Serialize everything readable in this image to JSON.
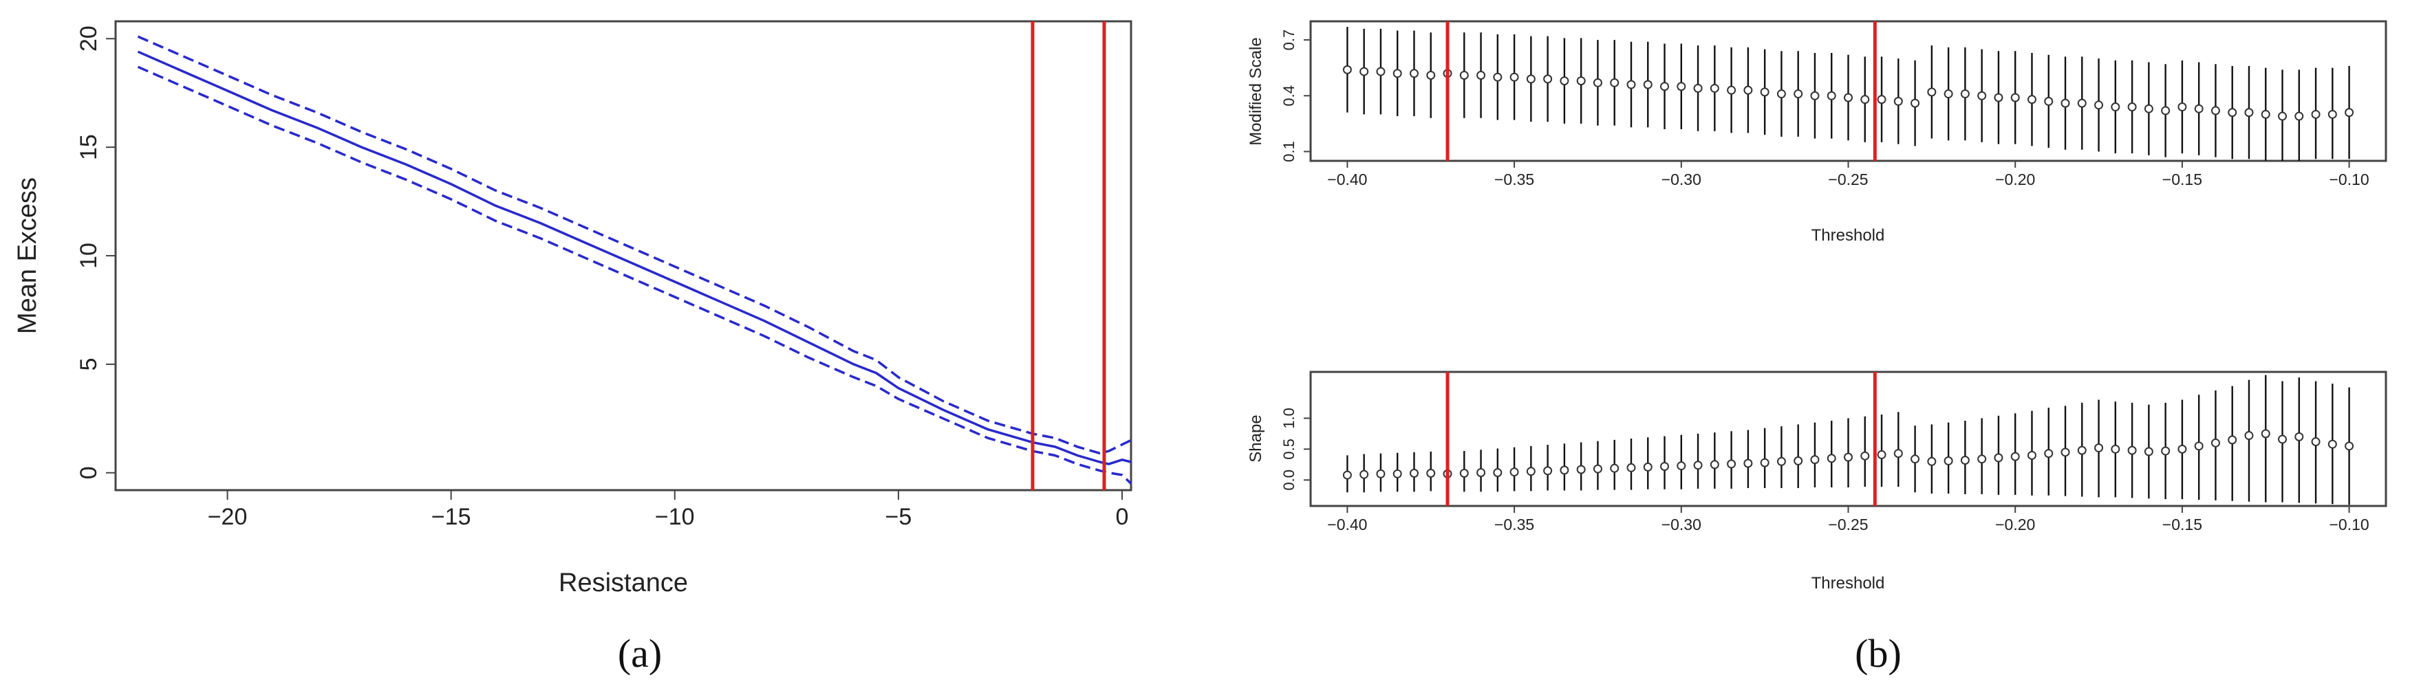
{
  "chart_data": [
    {
      "id": "a",
      "type": "line",
      "caption": "(a)",
      "xlabel": "Resistance",
      "ylabel": "Mean Excess",
      "xlim": [
        -22.5,
        0.2
      ],
      "ylim": [
        -0.8,
        20.8
      ],
      "xticks": [
        -20,
        -15,
        -10,
        -5,
        0
      ],
      "xtick_labels": [
        "−20",
        "−15",
        "−10",
        "−5",
        "0"
      ],
      "yticks": [
        0,
        5,
        10,
        15,
        20
      ],
      "ytick_labels": [
        "0",
        "5",
        "10",
        "15",
        "20"
      ],
      "x": [
        -22,
        -21,
        -20,
        -19,
        -18,
        -17,
        -16,
        -15,
        -14,
        -13,
        -12,
        -11,
        -10,
        -9,
        -8,
        -7,
        -6,
        -5.5,
        -5,
        -4,
        -3,
        -2,
        -1.5,
        -1,
        -0.5,
        -0.3,
        0,
        0.2
      ],
      "series": [
        {
          "role": "estimate",
          "style": "solid",
          "values": [
            19.4,
            18.5,
            17.6,
            16.7,
            15.9,
            15.0,
            14.2,
            13.3,
            12.3,
            11.5,
            10.6,
            9.7,
            8.8,
            7.9,
            7.0,
            6.0,
            5.0,
            4.6,
            3.9,
            2.9,
            2.0,
            1.4,
            1.2,
            0.8,
            0.5,
            0.4,
            0.6,
            0.5
          ]
        },
        {
          "role": "upper",
          "style": "dashed",
          "values": [
            20.1,
            19.2,
            18.3,
            17.4,
            16.6,
            15.7,
            14.9,
            14.0,
            13.0,
            12.2,
            11.3,
            10.4,
            9.5,
            8.6,
            7.7,
            6.7,
            5.6,
            5.2,
            4.4,
            3.3,
            2.4,
            1.8,
            1.6,
            1.2,
            0.9,
            1.0,
            1.3,
            1.5
          ]
        },
        {
          "role": "lower",
          "style": "dashed",
          "values": [
            18.7,
            17.8,
            16.9,
            16.0,
            15.2,
            14.3,
            13.5,
            12.6,
            11.6,
            10.8,
            9.9,
            9.0,
            8.1,
            7.2,
            6.3,
            5.3,
            4.4,
            4.0,
            3.4,
            2.5,
            1.6,
            1.0,
            0.8,
            0.4,
            0.1,
            0.0,
            -0.1,
            -0.5
          ]
        }
      ],
      "vlines": [
        -2.0,
        -0.4
      ],
      "colors": {
        "line": "#2929cc",
        "vline": "#e02020",
        "axis": "#444444"
      }
    },
    {
      "id": "b-top",
      "type": "scatter",
      "xlabel": "Threshold",
      "ylabel": "Modified Scale",
      "xlim": [
        -0.411,
        -0.089
      ],
      "ylim": [
        0.05,
        0.8
      ],
      "xticks": [
        -0.4,
        -0.35,
        -0.3,
        -0.25,
        -0.2,
        -0.15,
        -0.1
      ],
      "xtick_labels": [
        "−0.40",
        "−0.35",
        "−0.30",
        "−0.25",
        "−0.20",
        "−0.15",
        "−0.10"
      ],
      "yticks": [
        0.1,
        0.4,
        0.7
      ],
      "ytick_labels": [
        "0.1",
        "0.4",
        "0.7"
      ],
      "x": [
        -0.4,
        -0.395,
        -0.39,
        -0.385,
        -0.38,
        -0.375,
        -0.37,
        -0.365,
        -0.36,
        -0.355,
        -0.35,
        -0.345,
        -0.34,
        -0.335,
        -0.33,
        -0.325,
        -0.32,
        -0.315,
        -0.31,
        -0.305,
        -0.3,
        -0.295,
        -0.29,
        -0.285,
        -0.28,
        -0.275,
        -0.27,
        -0.265,
        -0.26,
        -0.255,
        -0.25,
        -0.245,
        -0.24,
        -0.235,
        -0.23,
        -0.225,
        -0.22,
        -0.215,
        -0.21,
        -0.205,
        -0.2,
        -0.195,
        -0.19,
        -0.185,
        -0.18,
        -0.175,
        -0.17,
        -0.165,
        -0.16,
        -0.155,
        -0.15,
        -0.145,
        -0.14,
        -0.135,
        -0.13,
        -0.125,
        -0.12,
        -0.115,
        -0.11,
        -0.105,
        -0.1
      ],
      "values": [
        0.54,
        0.53,
        0.53,
        0.52,
        0.52,
        0.51,
        0.52,
        0.51,
        0.51,
        0.5,
        0.5,
        0.49,
        0.49,
        0.48,
        0.48,
        0.47,
        0.47,
        0.46,
        0.46,
        0.45,
        0.45,
        0.44,
        0.44,
        0.43,
        0.43,
        0.42,
        0.41,
        0.41,
        0.4,
        0.4,
        0.39,
        0.38,
        0.38,
        0.37,
        0.36,
        0.42,
        0.41,
        0.41,
        0.4,
        0.39,
        0.39,
        0.38,
        0.37,
        0.36,
        0.36,
        0.35,
        0.34,
        0.34,
        0.33,
        0.32,
        0.34,
        0.33,
        0.32,
        0.31,
        0.31,
        0.3,
        0.29,
        0.29,
        0.3,
        0.3,
        0.31
      ],
      "lower": [
        0.31,
        0.3,
        0.3,
        0.29,
        0.29,
        0.28,
        0.29,
        0.28,
        0.28,
        0.27,
        0.27,
        0.26,
        0.26,
        0.25,
        0.25,
        0.24,
        0.24,
        0.23,
        0.23,
        0.22,
        0.22,
        0.21,
        0.21,
        0.2,
        0.2,
        0.19,
        0.18,
        0.18,
        0.17,
        0.17,
        0.16,
        0.15,
        0.15,
        0.14,
        0.13,
        0.17,
        0.16,
        0.16,
        0.15,
        0.14,
        0.14,
        0.13,
        0.12,
        0.11,
        0.11,
        0.1,
        0.09,
        0.09,
        0.08,
        0.07,
        0.09,
        0.08,
        0.07,
        0.06,
        0.06,
        0.05,
        0.05,
        0.05,
        0.06,
        0.06,
        0.06
      ],
      "upper": [
        0.77,
        0.76,
        0.76,
        0.75,
        0.75,
        0.74,
        0.75,
        0.74,
        0.74,
        0.73,
        0.73,
        0.72,
        0.72,
        0.71,
        0.71,
        0.7,
        0.7,
        0.69,
        0.69,
        0.68,
        0.68,
        0.67,
        0.67,
        0.66,
        0.66,
        0.65,
        0.64,
        0.64,
        0.63,
        0.63,
        0.62,
        0.61,
        0.61,
        0.6,
        0.59,
        0.67,
        0.66,
        0.66,
        0.65,
        0.64,
        0.64,
        0.63,
        0.62,
        0.61,
        0.61,
        0.6,
        0.59,
        0.59,
        0.58,
        0.57,
        0.59,
        0.58,
        0.57,
        0.56,
        0.56,
        0.55,
        0.54,
        0.54,
        0.55,
        0.55,
        0.56
      ],
      "vlines": [
        -0.37,
        -0.242
      ],
      "colors": {
        "point": "#333333",
        "bar": "#111111",
        "vline": "#e02020",
        "axis": "#444444"
      }
    },
    {
      "id": "b-bottom",
      "type": "scatter",
      "caption": "(b)",
      "xlabel": "Threshold",
      "ylabel": "Shape",
      "xlim": [
        -0.411,
        -0.089
      ],
      "ylim": [
        -0.42,
        1.75
      ],
      "xticks": [
        -0.4,
        -0.35,
        -0.3,
        -0.25,
        -0.2,
        -0.15,
        -0.1
      ],
      "xtick_labels": [
        "−0.40",
        "−0.35",
        "−0.30",
        "−0.25",
        "−0.20",
        "−0.15",
        "−0.10"
      ],
      "yticks": [
        0.0,
        0.5,
        1.0
      ],
      "ytick_labels": [
        "0.0",
        "0.5",
        "1.0"
      ],
      "x": [
        -0.4,
        -0.395,
        -0.39,
        -0.385,
        -0.38,
        -0.375,
        -0.37,
        -0.365,
        -0.36,
        -0.355,
        -0.35,
        -0.345,
        -0.34,
        -0.335,
        -0.33,
        -0.325,
        -0.32,
        -0.315,
        -0.31,
        -0.305,
        -0.3,
        -0.295,
        -0.29,
        -0.285,
        -0.28,
        -0.275,
        -0.27,
        -0.265,
        -0.26,
        -0.255,
        -0.25,
        -0.245,
        -0.24,
        -0.235,
        -0.23,
        -0.225,
        -0.22,
        -0.215,
        -0.21,
        -0.205,
        -0.2,
        -0.195,
        -0.19,
        -0.185,
        -0.18,
        -0.175,
        -0.17,
        -0.165,
        -0.16,
        -0.155,
        -0.15,
        -0.145,
        -0.14,
        -0.135,
        -0.13,
        -0.125,
        -0.12,
        -0.115,
        -0.11,
        -0.105,
        -0.1
      ],
      "values": [
        0.08,
        0.09,
        0.1,
        0.1,
        0.11,
        0.11,
        0.1,
        0.11,
        0.12,
        0.12,
        0.13,
        0.14,
        0.15,
        0.16,
        0.17,
        0.18,
        0.19,
        0.2,
        0.21,
        0.22,
        0.23,
        0.24,
        0.25,
        0.26,
        0.27,
        0.28,
        0.3,
        0.31,
        0.33,
        0.35,
        0.37,
        0.39,
        0.41,
        0.43,
        0.34,
        0.3,
        0.31,
        0.32,
        0.34,
        0.36,
        0.38,
        0.4,
        0.43,
        0.45,
        0.48,
        0.52,
        0.5,
        0.48,
        0.46,
        0.47,
        0.5,
        0.55,
        0.6,
        0.65,
        0.72,
        0.75,
        0.66,
        0.7,
        0.62,
        0.58,
        0.55
      ],
      "lower": [
        -0.2,
        -0.2,
        -0.19,
        -0.19,
        -0.19,
        -0.18,
        -0.2,
        -0.19,
        -0.19,
        -0.19,
        -0.18,
        -0.18,
        -0.17,
        -0.17,
        -0.17,
        -0.16,
        -0.16,
        -0.16,
        -0.15,
        -0.15,
        -0.15,
        -0.14,
        -0.14,
        -0.14,
        -0.13,
        -0.13,
        -0.13,
        -0.13,
        -0.12,
        -0.12,
        -0.12,
        -0.11,
        -0.11,
        -0.11,
        -0.2,
        -0.22,
        -0.22,
        -0.23,
        -0.23,
        -0.24,
        -0.24,
        -0.25,
        -0.25,
        -0.26,
        -0.27,
        -0.28,
        -0.28,
        -0.29,
        -0.3,
        -0.31,
        -0.31,
        -0.32,
        -0.33,
        -0.34,
        -0.35,
        -0.36,
        -0.36,
        -0.37,
        -0.38,
        -0.39,
        -0.4
      ],
      "upper": [
        0.4,
        0.42,
        0.43,
        0.44,
        0.45,
        0.46,
        0.45,
        0.47,
        0.49,
        0.51,
        0.53,
        0.55,
        0.57,
        0.59,
        0.61,
        0.63,
        0.65,
        0.67,
        0.69,
        0.71,
        0.73,
        0.75,
        0.77,
        0.79,
        0.81,
        0.84,
        0.87,
        0.9,
        0.93,
        0.96,
        1.0,
        1.03,
        1.06,
        1.1,
        0.88,
        0.9,
        0.93,
        0.96,
        1.0,
        1.04,
        1.08,
        1.12,
        1.17,
        1.2,
        1.25,
        1.3,
        1.27,
        1.25,
        1.22,
        1.25,
        1.3,
        1.38,
        1.45,
        1.52,
        1.62,
        1.7,
        1.6,
        1.66,
        1.6,
        1.56,
        1.5
      ],
      "vlines": [
        -0.37,
        -0.242
      ],
      "colors": {
        "point": "#333333",
        "bar": "#111111",
        "vline": "#e02020",
        "axis": "#444444"
      }
    }
  ]
}
